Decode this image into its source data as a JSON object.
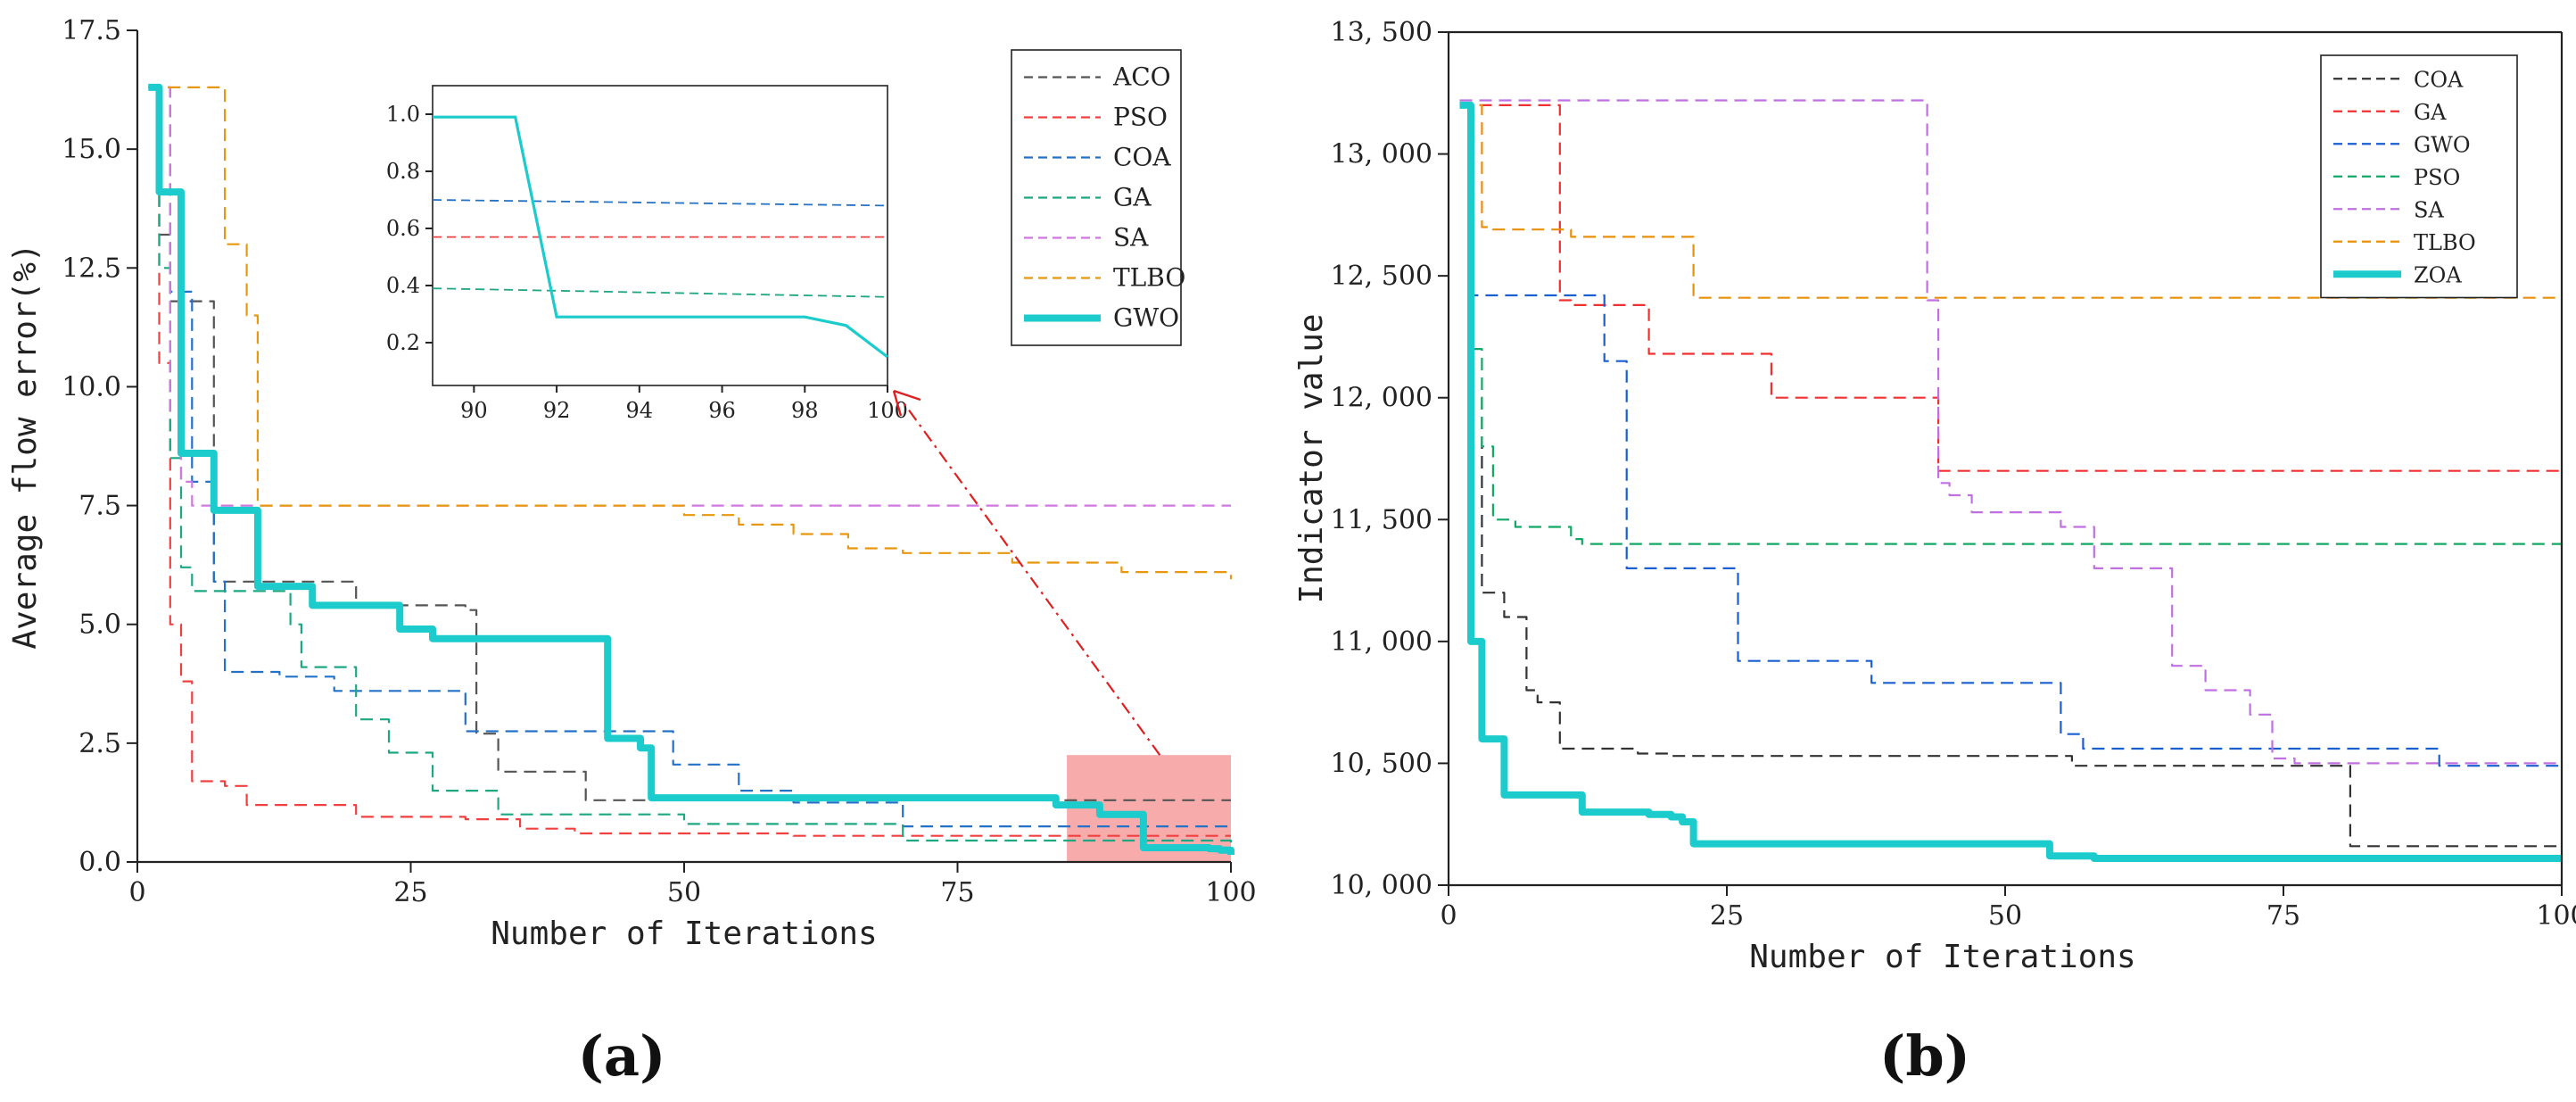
{
  "chart_data": [
    {
      "type": "line",
      "panel_label": "(a)",
      "xlabel": "Number of Iterations",
      "ylabel": "Average flow error(%)",
      "xlim": [
        0,
        100
      ],
      "ylim": [
        0,
        17.5
      ],
      "xticks": [
        "0",
        "25",
        "50",
        "75",
        "100"
      ],
      "yticks": [
        "0.0",
        "2.5",
        "5.0",
        "7.5",
        "10.0",
        "12.5",
        "15.0",
        "17.5"
      ],
      "legend_position": "top-right",
      "highlight_region": {
        "x": [
          85,
          100
        ],
        "y": [
          0,
          2.25
        ],
        "color": "#f48f8f"
      },
      "annotation": "arrow from highlighted region to inset",
      "series": [
        {
          "name": "ACO",
          "color": "#555555",
          "style": "dashed",
          "x": [
            1,
            2,
            3,
            6,
            7,
            18,
            20,
            30,
            31,
            33,
            40,
            41,
            60,
            61,
            100
          ],
          "values": [
            16.3,
            13.2,
            11.8,
            11.8,
            5.9,
            5.9,
            5.4,
            5.3,
            2.7,
            1.9,
            1.9,
            1.3,
            1.3,
            1.3,
            1.3
          ]
        },
        {
          "name": "PSO",
          "color": "#f04040",
          "style": "dashed",
          "x": [
            1,
            2,
            3,
            4,
            5,
            8,
            10,
            15,
            20,
            30,
            35,
            40,
            60,
            100
          ],
          "values": [
            16.3,
            10.5,
            5.0,
            3.8,
            1.7,
            1.6,
            1.2,
            1.2,
            0.95,
            0.9,
            0.7,
            0.6,
            0.55,
            0.55
          ]
        },
        {
          "name": "COA",
          "color": "#2472c8",
          "style": "dashed",
          "x": [
            1,
            3,
            5,
            7,
            8,
            13,
            18,
            29,
            30,
            48,
            49,
            55,
            60,
            70,
            100
          ],
          "values": [
            16.3,
            12.0,
            8.0,
            5.9,
            4.0,
            3.9,
            3.6,
            3.6,
            2.75,
            2.75,
            2.05,
            1.5,
            1.25,
            0.75,
            0.7
          ]
        },
        {
          "name": "GA",
          "color": "#1da882",
          "style": "dashed",
          "x": [
            1,
            2,
            3,
            4,
            5,
            13,
            14,
            15,
            20,
            23,
            27,
            33,
            50,
            70,
            100
          ],
          "values": [
            16.3,
            12.5,
            8.5,
            6.2,
            5.7,
            5.7,
            5.0,
            4.1,
            3.0,
            2.3,
            1.5,
            1.0,
            0.8,
            0.45,
            0.38
          ]
        },
        {
          "name": "SA",
          "color": "#d077e0",
          "style": "dashed",
          "x": [
            1,
            2,
            3,
            4,
            5,
            100
          ],
          "values": [
            16.3,
            16.3,
            9.5,
            8.0,
            7.5,
            7.5
          ]
        },
        {
          "name": "TLBO",
          "color": "#e8980e",
          "style": "dashed",
          "x": [
            1,
            6,
            8,
            10,
            11,
            30,
            45,
            50,
            55,
            60,
            65,
            70,
            80,
            90,
            100
          ],
          "values": [
            16.3,
            16.3,
            13.0,
            11.5,
            7.5,
            7.5,
            7.5,
            7.3,
            7.1,
            6.9,
            6.6,
            6.5,
            6.3,
            6.1,
            5.95
          ]
        },
        {
          "name": "GWO",
          "color": "#1ccbcc",
          "style": "solid-thick",
          "x": [
            1,
            2,
            3,
            4,
            5,
            7,
            8,
            11,
            12,
            16,
            17,
            24,
            25,
            27,
            29,
            42,
            43,
            45,
            46,
            47,
            83,
            84,
            87,
            88,
            91,
            92,
            96,
            98,
            99,
            100
          ],
          "values": [
            16.3,
            14.1,
            14.1,
            8.6,
            8.6,
            7.4,
            7.4,
            5.8,
            5.8,
            5.4,
            5.4,
            4.9,
            4.9,
            4.7,
            4.7,
            4.7,
            2.6,
            2.6,
            2.4,
            1.35,
            1.35,
            1.2,
            1.2,
            1.0,
            1.0,
            0.3,
            0.3,
            0.28,
            0.25,
            0.15
          ]
        }
      ],
      "inset": {
        "xlim": [
          89,
          100
        ],
        "ylim": [
          0.05,
          1.1
        ],
        "xticks": [
          "90",
          "92",
          "94",
          "96",
          "98",
          "100"
        ],
        "yticks": [
          "0.2",
          "0.4",
          "0.6",
          "0.8",
          "1.0"
        ],
        "series": [
          {
            "name": "COA",
            "x": [
              89,
              100
            ],
            "values": [
              0.7,
              0.68
            ]
          },
          {
            "name": "PSO",
            "x": [
              89,
              100
            ],
            "values": [
              0.57,
              0.57
            ]
          },
          {
            "name": "GA",
            "x": [
              89,
              100
            ],
            "values": [
              0.39,
              0.36
            ]
          },
          {
            "name": "GWO",
            "x": [
              89,
              91,
              92,
              98,
              99,
              100
            ],
            "values": [
              0.99,
              0.99,
              0.29,
              0.29,
              0.26,
              0.15
            ]
          }
        ]
      }
    },
    {
      "type": "line",
      "panel_label": "(b)",
      "xlabel": "Number of Iterations",
      "ylabel": "Indicator value",
      "xlim": [
        0,
        100
      ],
      "ylim": [
        10000,
        13500
      ],
      "xticks": [
        "0",
        "25",
        "50",
        "75",
        "100"
      ],
      "yticks": [
        "10, 000",
        "10, 500",
        "11, 000",
        "11, 500",
        "12, 000",
        "12, 500",
        "13, 000",
        "13, 500"
      ],
      "legend_position": "top-right",
      "series": [
        {
          "name": "COA",
          "color": "#333333",
          "style": "dashed",
          "x": [
            1,
            2,
            3,
            5,
            7,
            8,
            10,
            17,
            20,
            56,
            60,
            80,
            81,
            100
          ],
          "values": [
            13200,
            12000,
            11200,
            11100,
            10800,
            10750,
            10560,
            10540,
            10530,
            10490,
            10490,
            10490,
            10160,
            10160
          ]
        },
        {
          "name": "GA",
          "color": "#f03030",
          "style": "dashed",
          "x": [
            1,
            8,
            10,
            11,
            16,
            18,
            20,
            28,
            29,
            43,
            44,
            100
          ],
          "values": [
            13200,
            13200,
            12400,
            12380,
            12380,
            12180,
            12180,
            12180,
            12000,
            12000,
            11700,
            11680
          ]
        },
        {
          "name": "GWO",
          "color": "#1a5fd0",
          "style": "dashed",
          "x": [
            1,
            2,
            12,
            14,
            15,
            16,
            17,
            21,
            25,
            26,
            36,
            38,
            43,
            44,
            50,
            55,
            56,
            57,
            58,
            88,
            89,
            100
          ],
          "values": [
            13200,
            12420,
            12420,
            12150,
            12150,
            11300,
            11300,
            11300,
            11300,
            10920,
            10920,
            10830,
            10830,
            10830,
            10830,
            10620,
            10620,
            10560,
            10560,
            10560,
            10490,
            10490
          ]
        },
        {
          "name": "PSO",
          "color": "#12a865",
          "style": "dashed",
          "x": [
            1,
            2,
            3,
            4,
            6,
            10,
            11,
            12,
            15,
            100
          ],
          "values": [
            13200,
            12200,
            11800,
            11500,
            11470,
            11470,
            11420,
            11400,
            11400,
            11400
          ]
        },
        {
          "name": "SA",
          "color": "#c070e0",
          "style": "dashed",
          "x": [
            1,
            42,
            43,
            44,
            45,
            47,
            50,
            55,
            58,
            65,
            68,
            72,
            74,
            76,
            100
          ],
          "values": [
            13220,
            13220,
            12400,
            11650,
            11600,
            11530,
            11530,
            11470,
            11300,
            10900,
            10800,
            10700,
            10520,
            10500,
            10500
          ]
        },
        {
          "name": "TLBO",
          "color": "#e8900a",
          "style": "dashed",
          "x": [
            1,
            3,
            4,
            10,
            11,
            21,
            22,
            100
          ],
          "values": [
            13200,
            12700,
            12690,
            12690,
            12660,
            12660,
            12410,
            12410
          ]
        },
        {
          "name": "ZOA",
          "color": "#1ccbcc",
          "style": "solid-thick",
          "x": [
            1,
            2,
            3,
            4,
            5,
            11,
            12,
            17,
            18,
            20,
            21,
            22,
            53,
            54,
            57,
            58,
            60,
            100
          ],
          "values": [
            13200,
            11000,
            10600,
            10600,
            10370,
            10370,
            10300,
            10300,
            10290,
            10280,
            10260,
            10170,
            10170,
            10120,
            10120,
            10110,
            10110,
            10110
          ]
        }
      ]
    }
  ]
}
